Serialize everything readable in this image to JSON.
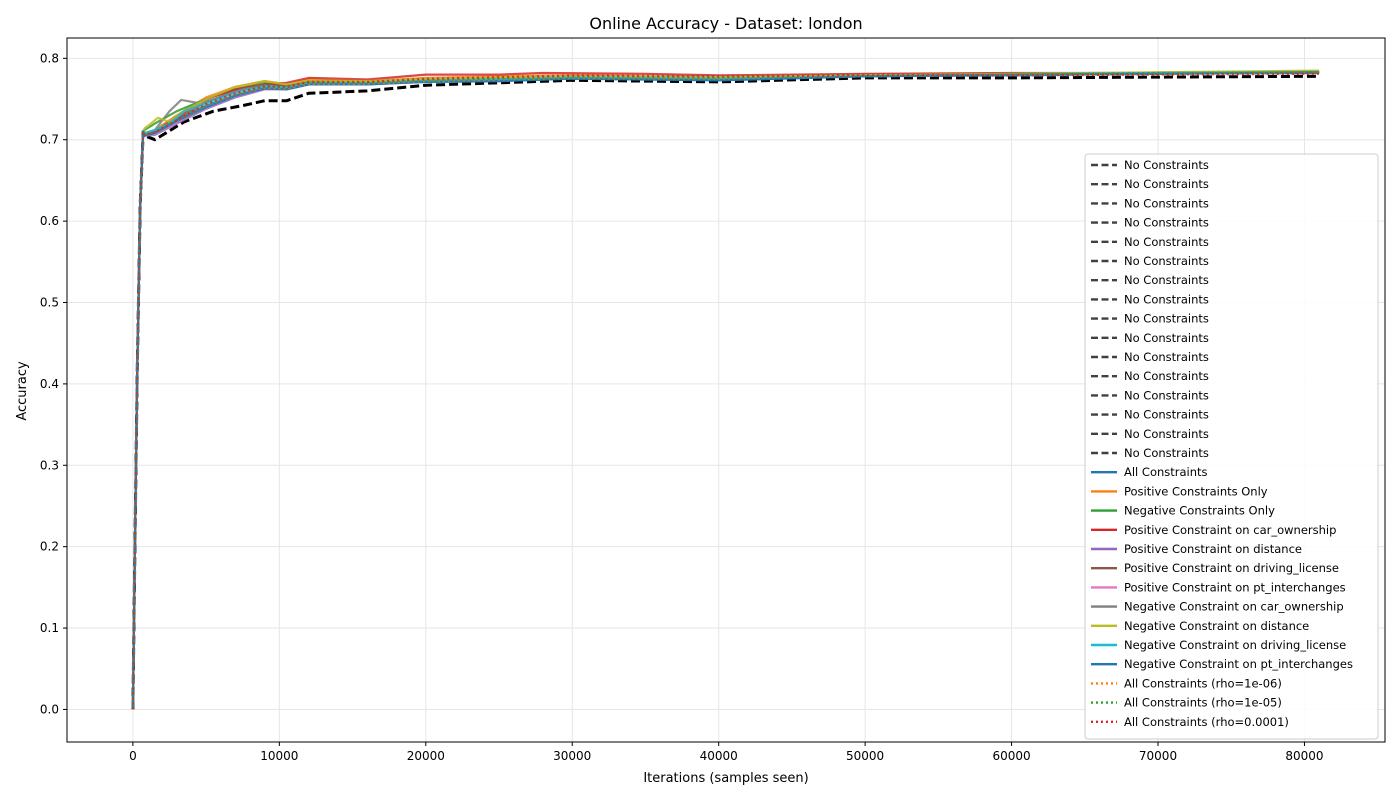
{
  "chart_data": {
    "type": "line",
    "title": "Online Accuracy - Dataset: london",
    "xlabel": "Iterations (samples seen)",
    "ylabel": "Accuracy",
    "xlim": [
      -4500,
      85500
    ],
    "ylim": [
      -0.04,
      0.825
    ],
    "xticks": [
      0,
      10000,
      20000,
      30000,
      40000,
      50000,
      60000,
      70000,
      80000
    ],
    "yticks": [
      0.0,
      0.1,
      0.2,
      0.3,
      0.4,
      0.5,
      0.6,
      0.7,
      0.8
    ],
    "xtick_labels": [
      "0",
      "10000",
      "20000",
      "30000",
      "40000",
      "50000",
      "60000",
      "70000",
      "80000"
    ],
    "ytick_labels": [
      "0.0",
      "0.1",
      "0.2",
      "0.3",
      "0.4",
      "0.5",
      "0.6",
      "0.7",
      "0.8"
    ],
    "grid": true,
    "legend_position": "right",
    "series": [
      {
        "name": "No Constraints",
        "color": "#404040",
        "style": "dashed",
        "x": [
          0,
          100,
          300,
          500,
          700,
          800,
          1500,
          3500,
          5500,
          7500,
          9000,
          10500,
          12000,
          16000,
          20000,
          25000,
          30000,
          40000,
          50000,
          60000,
          70000,
          81000
        ],
        "y": [
          0.0,
          0.15,
          0.42,
          0.62,
          0.71,
          0.705,
          0.7,
          0.722,
          0.735,
          0.742,
          0.748,
          0.748,
          0.757,
          0.76,
          0.767,
          0.77,
          0.773,
          0.771,
          0.776,
          0.776,
          0.777,
          0.778
        ]
      },
      {
        "name": "No Constraints",
        "color": "#404040",
        "style": "dashed",
        "x": [],
        "y": []
      },
      {
        "name": "No Constraints",
        "color": "#404040",
        "style": "dashed",
        "x": [],
        "y": []
      },
      {
        "name": "No Constraints",
        "color": "#404040",
        "style": "dashed",
        "x": [],
        "y": []
      },
      {
        "name": "No Constraints",
        "color": "#404040",
        "style": "dashed",
        "x": [],
        "y": []
      },
      {
        "name": "No Constraints",
        "color": "#404040",
        "style": "dashed",
        "x": [],
        "y": []
      },
      {
        "name": "No Constraints",
        "color": "#404040",
        "style": "dashed",
        "x": [],
        "y": []
      },
      {
        "name": "No Constraints",
        "color": "#404040",
        "style": "dashed",
        "x": [],
        "y": []
      },
      {
        "name": "No Constraints",
        "color": "#404040",
        "style": "dashed",
        "x": [],
        "y": []
      },
      {
        "name": "No Constraints",
        "color": "#404040",
        "style": "dashed",
        "x": [],
        "y": []
      },
      {
        "name": "No Constraints",
        "color": "#404040",
        "style": "dashed",
        "x": [],
        "y": []
      },
      {
        "name": "No Constraints",
        "color": "#404040",
        "style": "dashed",
        "x": [],
        "y": []
      },
      {
        "name": "No Constraints",
        "color": "#404040",
        "style": "dashed",
        "x": [],
        "y": []
      },
      {
        "name": "No Constraints",
        "color": "#404040",
        "style": "dashed",
        "x": [],
        "y": []
      },
      {
        "name": "No Constraints",
        "color": "#404040",
        "style": "dashed",
        "x": [],
        "y": []
      },
      {
        "name": "No Constraints",
        "color": "#404040",
        "style": "dashed",
        "x": [],
        "y": []
      },
      {
        "name": "All Constraints",
        "color": "#1f77b4",
        "style": "solid",
        "x": [
          0,
          100,
          300,
          500,
          700,
          800,
          1500,
          3000,
          5000,
          7000,
          9000,
          10500,
          12000,
          16000,
          20000,
          25000,
          30000,
          40000,
          50000,
          60000,
          70000,
          81000
        ],
        "y": [
          0.0,
          0.15,
          0.42,
          0.62,
          0.71,
          0.705,
          0.708,
          0.725,
          0.742,
          0.755,
          0.764,
          0.762,
          0.768,
          0.768,
          0.771,
          0.772,
          0.775,
          0.773,
          0.778,
          0.779,
          0.781,
          0.782
        ]
      },
      {
        "name": "Positive Constraints Only",
        "color": "#ff7f0e",
        "style": "solid",
        "x": [
          0,
          100,
          300,
          500,
          700,
          800,
          1500,
          3000,
          5000,
          7000,
          9000,
          10500,
          12000,
          16000,
          20000,
          25000,
          30000,
          40000,
          50000,
          60000,
          70000,
          81000
        ],
        "y": [
          0.0,
          0.15,
          0.42,
          0.62,
          0.71,
          0.708,
          0.712,
          0.73,
          0.752,
          0.765,
          0.772,
          0.768,
          0.774,
          0.772,
          0.776,
          0.778,
          0.779,
          0.777,
          0.779,
          0.781,
          0.782,
          0.784
        ]
      },
      {
        "name": "Negative Constraints Only",
        "color": "#2ca02c",
        "style": "solid",
        "x": [
          0,
          100,
          300,
          500,
          700,
          800,
          1500,
          3000,
          5000,
          7000,
          9000,
          10500,
          12000,
          16000,
          20000,
          25000,
          30000,
          40000,
          50000,
          60000,
          70000,
          81000
        ],
        "y": [
          0.0,
          0.15,
          0.42,
          0.62,
          0.71,
          0.712,
          0.72,
          0.735,
          0.75,
          0.762,
          0.77,
          0.766,
          0.772,
          0.771,
          0.774,
          0.776,
          0.778,
          0.777,
          0.78,
          0.781,
          0.782,
          0.784
        ]
      },
      {
        "name": "Positive Constraint on car_ownership",
        "color": "#d62728",
        "style": "solid",
        "x": [
          0,
          100,
          300,
          500,
          700,
          800,
          1500,
          3000,
          5000,
          7000,
          9000,
          10500,
          12000,
          16000,
          20000,
          25000,
          28000,
          35000,
          40000,
          50000,
          60000,
          70000,
          81000
        ],
        "y": [
          0.0,
          0.15,
          0.42,
          0.62,
          0.71,
          0.705,
          0.71,
          0.728,
          0.75,
          0.762,
          0.768,
          0.77,
          0.776,
          0.774,
          0.78,
          0.78,
          0.782,
          0.781,
          0.779,
          0.781,
          0.782,
          0.782,
          0.782
        ]
      },
      {
        "name": "Positive Constraint on distance",
        "color": "#9467bd",
        "style": "solid",
        "x": [
          0,
          100,
          300,
          500,
          700,
          800,
          1500,
          3000,
          5000,
          7000,
          9000,
          10500,
          12000,
          16000,
          20000,
          25000,
          30000,
          40000,
          50000,
          60000,
          70000,
          81000
        ],
        "y": [
          0.0,
          0.15,
          0.42,
          0.62,
          0.71,
          0.705,
          0.706,
          0.72,
          0.738,
          0.752,
          0.762,
          0.762,
          0.768,
          0.768,
          0.772,
          0.773,
          0.776,
          0.775,
          0.778,
          0.78,
          0.781,
          0.783
        ]
      },
      {
        "name": "Positive Constraint on driving_license",
        "color": "#8c564b",
        "style": "solid",
        "x": [
          0,
          100,
          300,
          500,
          700,
          800,
          1500,
          3000,
          5000,
          7000,
          9000,
          10500,
          12000,
          16000,
          20000,
          25000,
          30000,
          40000,
          50000,
          60000,
          70000,
          81000
        ],
        "y": [
          0.0,
          0.15,
          0.42,
          0.62,
          0.71,
          0.706,
          0.71,
          0.726,
          0.746,
          0.76,
          0.768,
          0.766,
          0.772,
          0.771,
          0.775,
          0.776,
          0.778,
          0.777,
          0.779,
          0.78,
          0.782,
          0.783
        ]
      },
      {
        "name": "Positive Constraint on pt_interchanges",
        "color": "#e377c2",
        "style": "solid",
        "x": [
          0,
          100,
          300,
          500,
          700,
          800,
          1500,
          3000,
          5000,
          7000,
          9000,
          10500,
          12000,
          16000,
          20000,
          25000,
          30000,
          40000,
          50000,
          60000,
          70000,
          81000
        ],
        "y": [
          0.0,
          0.15,
          0.42,
          0.62,
          0.71,
          0.705,
          0.707,
          0.722,
          0.74,
          0.755,
          0.764,
          0.764,
          0.77,
          0.77,
          0.774,
          0.775,
          0.777,
          0.776,
          0.779,
          0.78,
          0.781,
          0.783
        ]
      },
      {
        "name": "Negative Constraint on car_ownership",
        "color": "#7f7f7f",
        "style": "solid",
        "x": [
          0,
          100,
          300,
          500,
          700,
          800,
          1500,
          2500,
          3300,
          4500,
          6000,
          7500,
          9000,
          10500,
          12000,
          16000,
          20000,
          25000,
          30000,
          40000,
          50000,
          60000,
          70000,
          81000
        ],
        "y": [
          0.0,
          0.15,
          0.42,
          0.62,
          0.71,
          0.708,
          0.712,
          0.735,
          0.749,
          0.745,
          0.752,
          0.762,
          0.766,
          0.764,
          0.77,
          0.77,
          0.774,
          0.775,
          0.777,
          0.776,
          0.778,
          0.78,
          0.781,
          0.783
        ]
      },
      {
        "name": "Negative Constraint on distance",
        "color": "#bcbd22",
        "style": "solid",
        "x": [
          0,
          100,
          300,
          500,
          700,
          800,
          1100,
          1700,
          2500,
          3500,
          5000,
          7000,
          9000,
          10500,
          12000,
          16000,
          20000,
          25000,
          30000,
          40000,
          50000,
          60000,
          70000,
          81000
        ],
        "y": [
          0.0,
          0.15,
          0.42,
          0.62,
          0.71,
          0.714,
          0.718,
          0.727,
          0.722,
          0.735,
          0.75,
          0.765,
          0.772,
          0.768,
          0.773,
          0.772,
          0.775,
          0.777,
          0.778,
          0.777,
          0.779,
          0.781,
          0.783,
          0.785
        ]
      },
      {
        "name": "Negative Constraint on driving_license",
        "color": "#17becf",
        "style": "solid",
        "x": [
          0,
          100,
          300,
          500,
          700,
          800,
          1500,
          2500,
          3500,
          5000,
          7000,
          9000,
          10500,
          12000,
          16000,
          20000,
          25000,
          30000,
          40000,
          50000,
          60000,
          70000,
          81000
        ],
        "y": [
          0.0,
          0.15,
          0.42,
          0.62,
          0.71,
          0.708,
          0.712,
          0.72,
          0.735,
          0.745,
          0.758,
          0.766,
          0.764,
          0.769,
          0.769,
          0.772,
          0.774,
          0.776,
          0.775,
          0.778,
          0.78,
          0.782,
          0.783
        ]
      },
      {
        "name": "Negative Constraint on pt_interchanges",
        "color": "#1f77b4",
        "style": "solid",
        "x": [
          0,
          100,
          300,
          500,
          700,
          800,
          1500,
          3000,
          5000,
          7000,
          9000,
          10500,
          12000,
          16000,
          20000,
          25000,
          30000,
          40000,
          50000,
          60000,
          70000,
          81000
        ],
        "y": [
          0.0,
          0.15,
          0.42,
          0.62,
          0.71,
          0.705,
          0.708,
          0.723,
          0.74,
          0.754,
          0.763,
          0.762,
          0.768,
          0.768,
          0.771,
          0.772,
          0.775,
          0.773,
          0.778,
          0.78,
          0.781,
          0.783
        ]
      },
      {
        "name": "All Constraints (rho=1e-06)",
        "color": "#ff7f0e",
        "style": "dotted",
        "x": [
          0,
          100,
          300,
          500,
          700,
          800,
          1500,
          3000,
          5000,
          7000,
          9000,
          10500,
          12000,
          16000,
          20000,
          25000,
          30000,
          40000,
          50000,
          60000,
          70000,
          81000
        ],
        "y": [
          0.0,
          0.15,
          0.42,
          0.62,
          0.71,
          0.706,
          0.709,
          0.724,
          0.742,
          0.755,
          0.764,
          0.763,
          0.769,
          0.769,
          0.772,
          0.774,
          0.776,
          0.775,
          0.779,
          0.78,
          0.781,
          0.783
        ]
      },
      {
        "name": "All Constraints (rho=1e-05)",
        "color": "#2ca02c",
        "style": "dotted",
        "x": [
          0,
          100,
          300,
          500,
          700,
          800,
          1500,
          3000,
          5000,
          7000,
          9000,
          10500,
          12000,
          16000,
          20000,
          25000,
          30000,
          40000,
          50000,
          60000,
          70000,
          81000
        ],
        "y": [
          0.0,
          0.15,
          0.42,
          0.62,
          0.71,
          0.706,
          0.709,
          0.724,
          0.742,
          0.755,
          0.765,
          0.764,
          0.77,
          0.77,
          0.773,
          0.775,
          0.777,
          0.776,
          0.779,
          0.78,
          0.782,
          0.783
        ]
      },
      {
        "name": "All Constraints (rho=0.0001)",
        "color": "#d62728",
        "style": "dotted",
        "x": [
          0,
          100,
          300,
          500,
          700,
          800,
          1500,
          3000,
          5000,
          7000,
          9000,
          10500,
          12000,
          16000,
          20000,
          25000,
          30000,
          40000,
          50000,
          60000,
          70000,
          81000
        ],
        "y": [
          0.0,
          0.15,
          0.42,
          0.62,
          0.71,
          0.706,
          0.709,
          0.724,
          0.744,
          0.757,
          0.766,
          0.765,
          0.771,
          0.771,
          0.775,
          0.777,
          0.779,
          0.778,
          0.779,
          0.779,
          0.78,
          0.781
        ]
      }
    ]
  }
}
